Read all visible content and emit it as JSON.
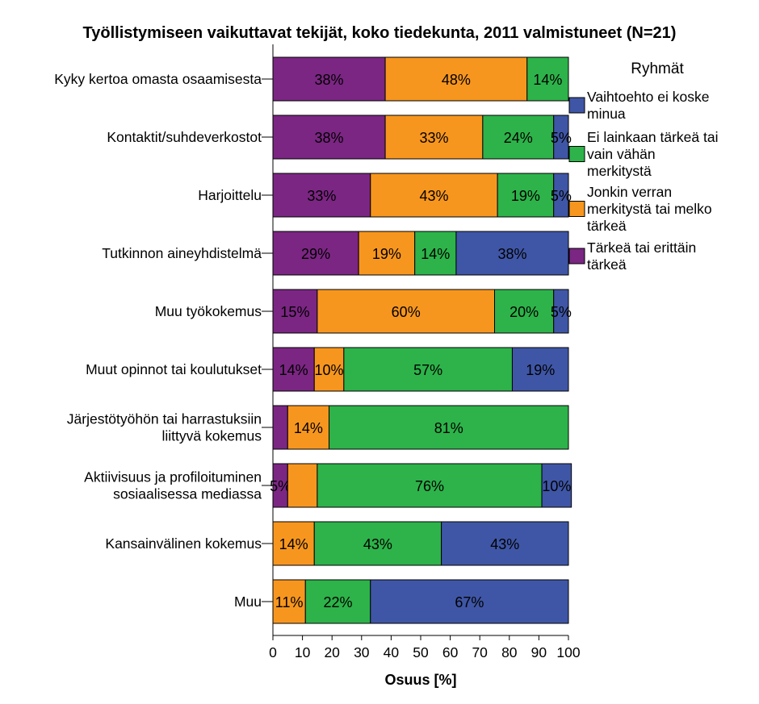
{
  "chart_data": {
    "type": "bar",
    "orientation": "horizontal",
    "stacked": true,
    "title": "Työllistymiseen vaikuttavat tekijät, koko tiedekunta, 2011 valmistuneet (N=21)",
    "xlabel": "Osuus [%]",
    "ylabel": "",
    "xlim": [
      0,
      100
    ],
    "xticks": [
      "0",
      "10",
      "20",
      "30",
      "40",
      "50",
      "60",
      "70",
      "80",
      "90",
      "100"
    ],
    "legend_title": "Ryhmät",
    "legend_position": "right",
    "categories": [
      [
        "Kyky kertoa omasta osaamisesta"
      ],
      [
        "Kontaktit/suhdeverkostot"
      ],
      [
        "Harjoittelu"
      ],
      [
        "Tutkinnon aineyhdistelmä"
      ],
      [
        "Muu työkokemus"
      ],
      [
        "Muut opinnot tai koulutukset"
      ],
      [
        "Järjestötyöhön tai harrastuksiin",
        "liittyvä kokemus"
      ],
      [
        "Aktiivisuus ja profiloituminen",
        "sosiaalisessa mediassa"
      ],
      [
        "Kansainvälinen kokemus"
      ],
      [
        "Muu"
      ]
    ],
    "series": [
      {
        "name": "Tärkeä tai erittäin tärkeä",
        "legend_lines": [
          "Tärkeä tai erittäin",
          "tärkeä"
        ],
        "color": "#7B2683",
        "values": [
          38,
          38,
          33,
          29,
          15,
          14,
          5,
          5,
          0,
          0
        ],
        "labels": [
          "38%",
          "38%",
          "33%",
          "29%",
          "15%",
          "14%",
          "",
          "5%",
          "",
          ""
        ]
      },
      {
        "name": "Jonkin verran merkitystä tai melko tärkeä",
        "legend_lines": [
          "Jonkin verran",
          "merkitystä tai melko",
          "tärkeä"
        ],
        "color": "#F7961E",
        "values": [
          48,
          33,
          43,
          19,
          60,
          10,
          14,
          10,
          14,
          11
        ],
        "labels": [
          "48%",
          "33%",
          "43%",
          "19%",
          "60%",
          "10%",
          "14%",
          "",
          "14%",
          "11%"
        ]
      },
      {
        "name": "Ei lainkaan tärkeä tai vain vähän merkitystä",
        "legend_lines": [
          "Ei lainkaan tärkeä tai",
          "vain vähän",
          "merkitystä"
        ],
        "color": "#2DB34A",
        "values": [
          14,
          24,
          19,
          14,
          20,
          57,
          81,
          76,
          43,
          22
        ],
        "labels": [
          "14%",
          "24%",
          "19%",
          "14%",
          "20%",
          "57%",
          "81%",
          "76%",
          "43%",
          "22%"
        ]
      },
      {
        "name": "Vaihtoehto ei koske minua",
        "legend_lines": [
          "Vaihtoehto ei koske",
          "minua"
        ],
        "color": "#3F56A6",
        "values": [
          0,
          5,
          5,
          38,
          5,
          19,
          0,
          10,
          43,
          67
        ],
        "labels": [
          "",
          "5%",
          "5%",
          "38%",
          "5%",
          "19%",
          "",
          "10%",
          "43%",
          "67%"
        ]
      }
    ],
    "legend_order": [
      3,
      2,
      1,
      0
    ],
    "grid": false
  }
}
